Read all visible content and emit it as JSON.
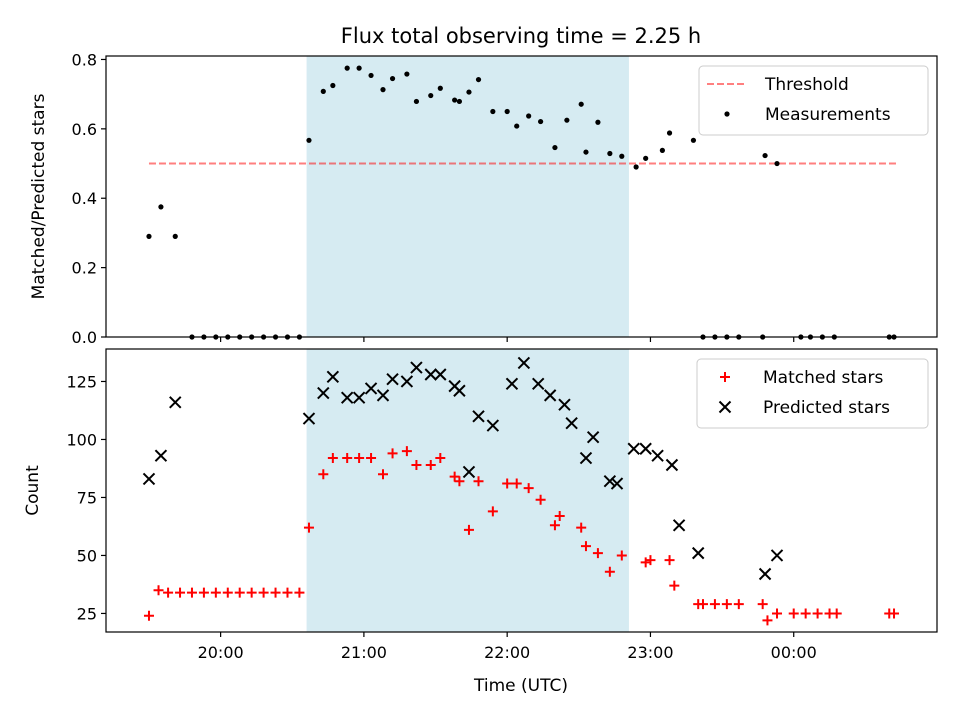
{
  "title": "Flux total observing time = 2.25 h",
  "xlabel": "Time (UTC)",
  "colors": {
    "band": "#add8e6",
    "threshold": "#ff0000",
    "measurement": "#000000",
    "matched": "#ff0000",
    "predicted": "#000000"
  },
  "chart_data": [
    {
      "type": "scatter",
      "title": "Flux total observing time = 2.25 h",
      "ylabel": "Matched/Predicted stars",
      "xlim": [
        "19:12",
        "25:00"
      ],
      "ylim": [
        0,
        0.81
      ],
      "xtick_values": [
        "20:00",
        "21:00",
        "22:00",
        "23:00",
        "24:00"
      ],
      "xtick_labels": [],
      "yticks": [
        0.0,
        0.2,
        0.4,
        0.6,
        0.8
      ],
      "ytick_labels": [
        "0.0",
        "0.2",
        "0.4",
        "0.6",
        "0.8"
      ],
      "shaded_region": [
        "20:36",
        "22:51"
      ],
      "legend_position": "upper right",
      "threshold": {
        "name": "Threshold",
        "value": 0.5,
        "x_range": [
          "19:30",
          "24:43"
        ]
      },
      "series": [
        {
          "name": "Measurements",
          "marker": "dot",
          "points": [
            [
              "19:30",
              0.29
            ],
            [
              "19:35",
              0.375
            ],
            [
              "19:41",
              0.29
            ],
            [
              "19:48",
              0.0
            ],
            [
              "19:53",
              0.0
            ],
            [
              "19:58",
              0.0
            ],
            [
              "20:03",
              0.0
            ],
            [
              "20:08",
              0.0
            ],
            [
              "20:13",
              0.0
            ],
            [
              "20:18",
              0.0
            ],
            [
              "20:23",
              0.0
            ],
            [
              "20:28",
              0.0
            ],
            [
              "20:33",
              0.0
            ],
            [
              "20:37",
              0.567
            ],
            [
              "20:43",
              0.708
            ],
            [
              "20:47",
              0.725
            ],
            [
              "20:53",
              0.775
            ],
            [
              "20:58",
              0.775
            ],
            [
              "21:03",
              0.754
            ],
            [
              "21:08",
              0.713
            ],
            [
              "21:12",
              0.745
            ],
            [
              "21:18",
              0.758
            ],
            [
              "21:22",
              0.679
            ],
            [
              "21:28",
              0.696
            ],
            [
              "21:32",
              0.717
            ],
            [
              "21:38",
              0.683
            ],
            [
              "21:40",
              0.679
            ],
            [
              "21:44",
              0.706
            ],
            [
              "21:48",
              0.742
            ],
            [
              "21:54",
              0.65
            ],
            [
              "22:00",
              0.65
            ],
            [
              "22:04",
              0.608
            ],
            [
              "22:09",
              0.637
            ],
            [
              "22:14",
              0.621
            ],
            [
              "22:20",
              0.546
            ],
            [
              "22:25",
              0.625
            ],
            [
              "22:31",
              0.671
            ],
            [
              "22:33",
              0.533
            ],
            [
              "22:38",
              0.619
            ],
            [
              "22:43",
              0.529
            ],
            [
              "22:48",
              0.521
            ],
            [
              "22:54",
              0.49
            ],
            [
              "22:58",
              0.515
            ],
            [
              "23:05",
              0.538
            ],
            [
              "23:08",
              0.588
            ],
            [
              "23:18",
              0.567
            ],
            [
              "23:22",
              0.0
            ],
            [
              "23:27",
              0.0
            ],
            [
              "23:32",
              0.0
            ],
            [
              "23:37",
              0.0
            ],
            [
              "23:47",
              0.0
            ],
            [
              "23:48",
              0.523
            ],
            [
              "23:53",
              0.5
            ],
            [
              "24:03",
              0.0
            ],
            [
              "24:07",
              0.0
            ],
            [
              "24:12",
              0.0
            ],
            [
              "24:17",
              0.0
            ],
            [
              "24:40",
              0.0
            ],
            [
              "24:42",
              0.0
            ]
          ]
        }
      ]
    },
    {
      "type": "scatter",
      "xlabel": "Time (UTC)",
      "ylabel": "Count",
      "xlim": [
        "19:12",
        "25:00"
      ],
      "ylim": [
        17,
        139
      ],
      "xtick_values": [
        "20:00",
        "21:00",
        "22:00",
        "23:00",
        "24:00"
      ],
      "xtick_labels": [
        "20:00",
        "21:00",
        "22:00",
        "23:00",
        "00:00"
      ],
      "yticks": [
        25,
        50,
        75,
        100,
        125
      ],
      "ytick_labels": [
        "25",
        "50",
        "75",
        "100",
        "125"
      ],
      "shaded_region": [
        "20:36",
        "22:51"
      ],
      "legend_position": "upper right",
      "series": [
        {
          "name": "Matched stars",
          "marker": "plus",
          "points": [
            [
              "19:30",
              24
            ],
            [
              "19:34",
              35
            ],
            [
              "19:38",
              34
            ],
            [
              "19:43",
              34
            ],
            [
              "19:48",
              34
            ],
            [
              "19:53",
              34
            ],
            [
              "19:58",
              34
            ],
            [
              "20:03",
              34
            ],
            [
              "20:08",
              34
            ],
            [
              "20:13",
              34
            ],
            [
              "20:18",
              34
            ],
            [
              "20:23",
              34
            ],
            [
              "20:28",
              34
            ],
            [
              "20:33",
              34
            ],
            [
              "20:37",
              62
            ],
            [
              "20:43",
              85
            ],
            [
              "20:47",
              92
            ],
            [
              "20:53",
              92
            ],
            [
              "20:58",
              92
            ],
            [
              "21:03",
              92
            ],
            [
              "21:08",
              85
            ],
            [
              "21:12",
              94
            ],
            [
              "21:18",
              95
            ],
            [
              "21:22",
              89
            ],
            [
              "21:28",
              89
            ],
            [
              "21:32",
              92
            ],
            [
              "21:38",
              84
            ],
            [
              "21:40",
              82
            ],
            [
              "21:44",
              61
            ],
            [
              "21:48",
              82
            ],
            [
              "21:54",
              69
            ],
            [
              "22:00",
              81
            ],
            [
              "22:04",
              81
            ],
            [
              "22:09",
              79
            ],
            [
              "22:14",
              74
            ],
            [
              "22:20",
              63
            ],
            [
              "22:22",
              67
            ],
            [
              "22:31",
              62
            ],
            [
              "22:33",
              54
            ],
            [
              "22:38",
              51
            ],
            [
              "22:43",
              43
            ],
            [
              "22:48",
              50
            ],
            [
              "22:58",
              47
            ],
            [
              "23:00",
              48
            ],
            [
              "23:08",
              48
            ],
            [
              "23:10",
              37
            ],
            [
              "23:20",
              29
            ],
            [
              "23:22",
              29
            ],
            [
              "23:27",
              29
            ],
            [
              "23:32",
              29
            ],
            [
              "23:37",
              29
            ],
            [
              "23:47",
              29
            ],
            [
              "23:49",
              22
            ],
            [
              "23:53",
              25
            ],
            [
              "24:00",
              25
            ],
            [
              "24:05",
              25
            ],
            [
              "24:10",
              25
            ],
            [
              "24:15",
              25
            ],
            [
              "24:18",
              25
            ],
            [
              "24:40",
              25
            ],
            [
              "24:42",
              25
            ]
          ]
        },
        {
          "name": "Predicted stars",
          "marker": "x",
          "points": [
            [
              "19:30",
              83
            ],
            [
              "19:35",
              93
            ],
            [
              "19:41",
              116
            ],
            [
              "20:37",
              109
            ],
            [
              "20:43",
              120
            ],
            [
              "20:47",
              127
            ],
            [
              "20:53",
              118
            ],
            [
              "20:58",
              118
            ],
            [
              "21:03",
              122
            ],
            [
              "21:08",
              119
            ],
            [
              "21:12",
              126
            ],
            [
              "21:18",
              125
            ],
            [
              "21:22",
              131
            ],
            [
              "21:28",
              128
            ],
            [
              "21:32",
              128
            ],
            [
              "21:38",
              123
            ],
            [
              "21:40",
              121
            ],
            [
              "21:44",
              86
            ],
            [
              "21:48",
              110
            ],
            [
              "21:54",
              106
            ],
            [
              "22:02",
              124
            ],
            [
              "22:07",
              133
            ],
            [
              "22:13",
              124
            ],
            [
              "22:18",
              119
            ],
            [
              "22:24",
              115
            ],
            [
              "22:27",
              107
            ],
            [
              "22:33",
              92
            ],
            [
              "22:36",
              101
            ],
            [
              "22:43",
              82
            ],
            [
              "22:46",
              81
            ],
            [
              "22:53",
              96
            ],
            [
              "22:58",
              96
            ],
            [
              "23:03",
              93
            ],
            [
              "23:09",
              89
            ],
            [
              "23:12",
              63
            ],
            [
              "23:20",
              51
            ],
            [
              "23:48",
              42
            ],
            [
              "23:53",
              50
            ]
          ]
        }
      ]
    }
  ]
}
